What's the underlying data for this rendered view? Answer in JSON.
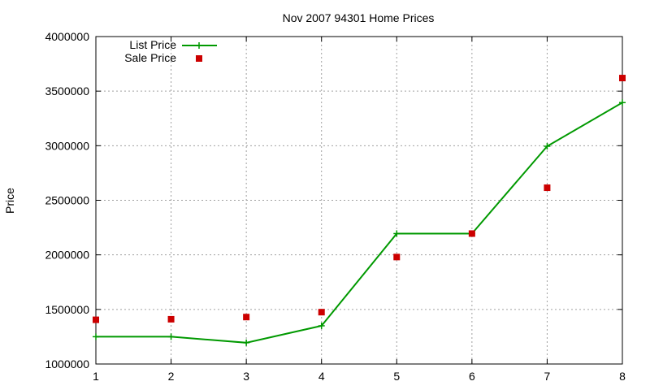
{
  "chart_data": {
    "type": "line",
    "title": "Nov 2007 94301 Home Prices",
    "xlabel": "",
    "ylabel": "Price",
    "xlim": [
      1,
      8
    ],
    "ylim": [
      1000000,
      4000000
    ],
    "x_ticks": [
      "1",
      "2",
      "3",
      "4",
      "5",
      "6",
      "7",
      "8"
    ],
    "y_ticks": [
      "1000000",
      "1500000",
      "2000000",
      "2500000",
      "3000000",
      "3500000",
      "4000000"
    ],
    "grid": true,
    "legend_position": "top-left",
    "series": [
      {
        "name": "List Price",
        "style": "lines+points",
        "marker": "plus",
        "color": "#009900",
        "x": [
          1,
          2,
          3,
          4,
          5,
          6,
          7,
          8
        ],
        "y": [
          1250000,
          1250000,
          1195000,
          1350000,
          2195000,
          2195000,
          2995000,
          3395000
        ]
      },
      {
        "name": "Sale Price",
        "style": "points",
        "marker": "square",
        "color": "#cc0000",
        "x": [
          1,
          2,
          3,
          4,
          5,
          6,
          7,
          8
        ],
        "y": [
          1405000,
          1410000,
          1430000,
          1475000,
          1980000,
          2195000,
          2615000,
          3620000
        ]
      }
    ]
  }
}
